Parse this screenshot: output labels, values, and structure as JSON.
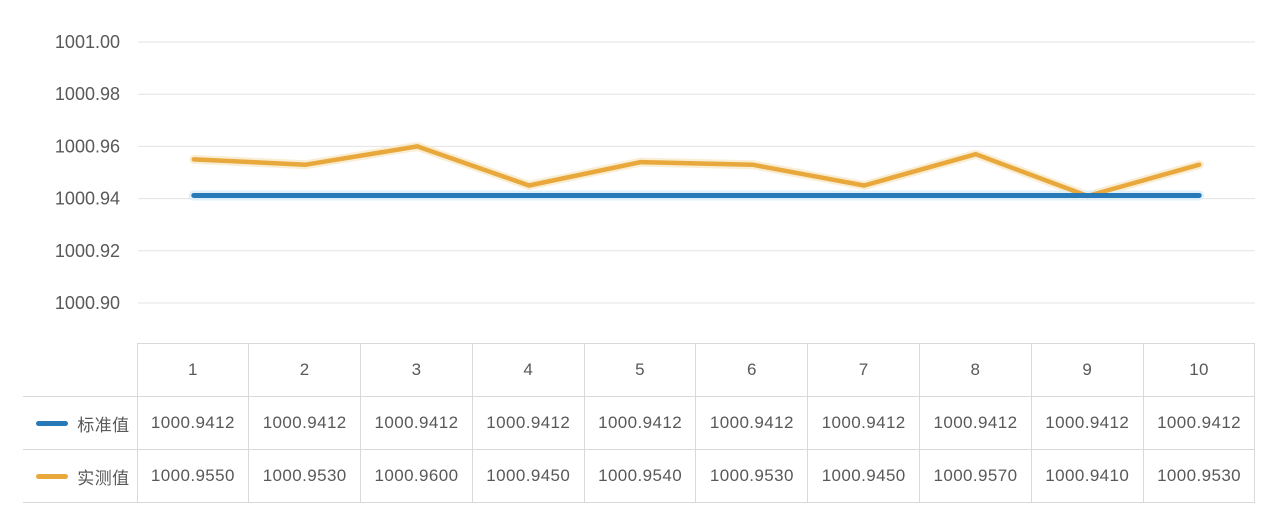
{
  "colors": {
    "standard_line": "#2879B8",
    "measured_line": "#E8A83B",
    "standard_halo": "#DCEEF9",
    "measured_halo": "#F8E9C9",
    "gridline": "#E3E3E3",
    "table_border": "#D9D9D9",
    "text": "#595959",
    "background": "#FFFFFF"
  },
  "chart_data": {
    "type": "line",
    "title": "",
    "xlabel": "",
    "ylabel": "",
    "categories": [
      "1",
      "2",
      "3",
      "4",
      "5",
      "6",
      "7",
      "8",
      "9",
      "10"
    ],
    "series": [
      {
        "name": "标准值",
        "color_key": "standard_line",
        "halo_key": "standard_halo",
        "values": [
          1000.9412,
          1000.9412,
          1000.9412,
          1000.9412,
          1000.9412,
          1000.9412,
          1000.9412,
          1000.9412,
          1000.9412,
          1000.9412
        ]
      },
      {
        "name": "实测值",
        "color_key": "measured_line",
        "halo_key": "measured_halo",
        "values": [
          1000.955,
          1000.953,
          1000.96,
          1000.945,
          1000.954,
          1000.953,
          1000.945,
          1000.957,
          1000.941,
          1000.953
        ]
      }
    ],
    "ylim": [
      1000.9,
      1001.0
    ],
    "ytick_labels": [
      "1001.00",
      "1000.98",
      "1000.96",
      "1000.94",
      "1000.92",
      "1000.90"
    ],
    "grid": true,
    "legend_position": "table-left-column"
  },
  "table": {
    "columns": [
      "1",
      "2",
      "3",
      "4",
      "5",
      "6",
      "7",
      "8",
      "9",
      "10"
    ],
    "rows": [
      {
        "legend": "标准值",
        "values": [
          "1000.9412",
          "1000.9412",
          "1000.9412",
          "1000.9412",
          "1000.9412",
          "1000.9412",
          "1000.9412",
          "1000.9412",
          "1000.9412",
          "1000.9412"
        ]
      },
      {
        "legend": "实测值",
        "values": [
          "1000.9550",
          "1000.9530",
          "1000.9600",
          "1000.9450",
          "1000.9540",
          "1000.9530",
          "1000.9450",
          "1000.9570",
          "1000.9410",
          "1000.9530"
        ]
      }
    ]
  }
}
